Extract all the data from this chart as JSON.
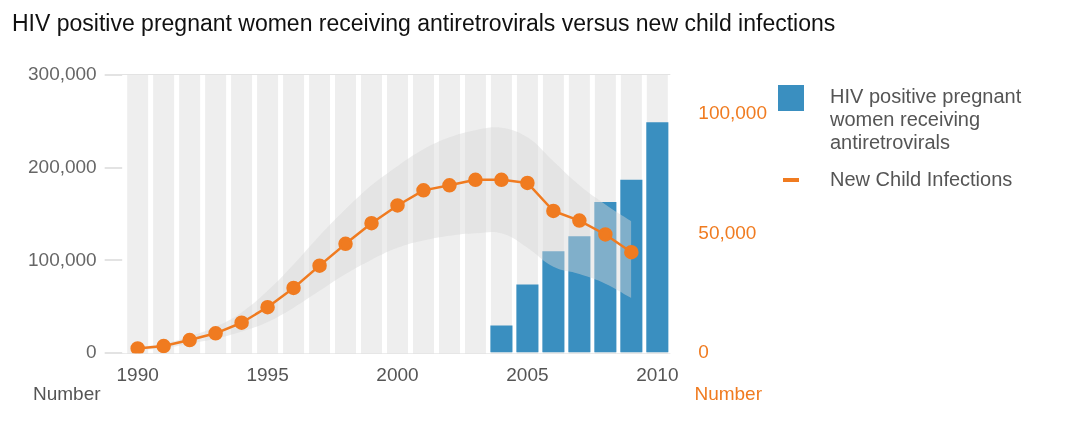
{
  "chart_data": {
    "type": "bar",
    "title": "HIV positive pregnant women receiving antiretrovirals versus new child infections",
    "xlabel": null,
    "ylabel": "Number",
    "y2label": "Number",
    "x": [
      1990,
      1991,
      1992,
      1993,
      1994,
      1995,
      1996,
      1997,
      1998,
      1999,
      2000,
      2001,
      2002,
      2003,
      2004,
      2005,
      2006,
      2007,
      2008,
      2009,
      2010
    ],
    "xlim": [
      1989.5,
      2010.5
    ],
    "xticks": [
      1990,
      1995,
      2000,
      2005,
      2010
    ],
    "ylim": [
      0,
      300000
    ],
    "yticks": [
      {
        "value": 0,
        "label": "0"
      },
      {
        "value": 100000,
        "label": "100,000"
      },
      {
        "value": 200000,
        "label": "200,000"
      },
      {
        "value": 300000,
        "label": "300,000"
      }
    ],
    "y2lim": [
      0,
      116000
    ],
    "y2ticks": [
      {
        "value": 0,
        "label": "0"
      },
      {
        "value": 50000,
        "label": "50,000"
      },
      {
        "value": 100000,
        "label": "100,000"
      }
    ],
    "series": [
      {
        "name": "HIV positive pregnant women receiving antiretrovirals",
        "color": "#3a8fc0",
        "values": [
          null,
          null,
          null,
          null,
          null,
          null,
          null,
          null,
          null,
          null,
          null,
          null,
          null,
          null,
          30000,
          74000,
          110000,
          126000,
          163000,
          187000,
          249000
        ]
      },
      {
        "name": "New Child Infections",
        "type": "line",
        "axis": "y2",
        "color": "#f07b20",
        "marker": "circle",
        "values": [
          2000,
          3000,
          5500,
          8300,
          12700,
          19200,
          27200,
          36500,
          45600,
          54200,
          61600,
          67900,
          70000,
          72300,
          72300,
          71000,
          59300,
          55300,
          49500,
          42100,
          null
        ],
        "lower": [
          1500,
          2000,
          4000,
          6000,
          9000,
          13000,
          19000,
          26000,
          33000,
          39000,
          44000,
          47000,
          49000,
          50000,
          50000,
          44000,
          36000,
          33000,
          29000,
          23000,
          null
        ],
        "upper": [
          2500,
          4000,
          7000,
          11000,
          17000,
          26000,
          37000,
          49000,
          60000,
          70000,
          78000,
          85000,
          90000,
          93000,
          94000,
          90000,
          80000,
          70000,
          62000,
          55000,
          null
        ]
      }
    ],
    "grid": true,
    "legend": "right"
  }
}
